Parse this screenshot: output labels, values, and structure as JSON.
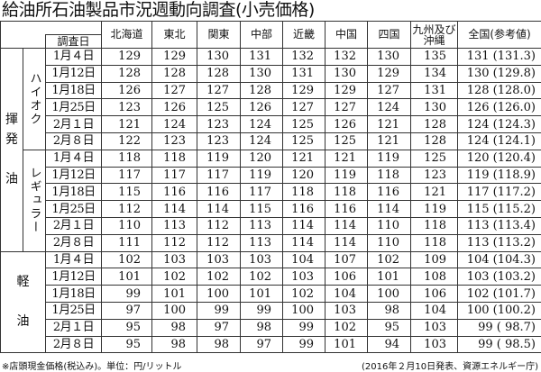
{
  "title": "給油所石油製品市況週動向調査(小売価格)",
  "header": {
    "date_label": "調査日",
    "regions": [
      "北海道",
      "東北",
      "関東",
      "中部",
      "近畿",
      "中国",
      "四国",
      "九州及び沖縄",
      "全国(参考値)"
    ]
  },
  "groups": [
    {
      "label": "揮\n発\n\n油",
      "subgroups": [
        {
          "label": "ハイオク",
          "rows": [
            {
              "date": "1月４日",
              "values": [
                "129",
                "129",
                "130",
                "131",
                "132",
                "132",
                "130",
                "135",
                "131 (131.3)"
              ]
            },
            {
              "date": "1月12日",
              "values": [
                "128",
                "128",
                "128",
                "130",
                "131",
                "130",
                "129",
                "134",
                "130 (129.8)"
              ]
            },
            {
              "date": "1月18日",
              "values": [
                "126",
                "127",
                "127",
                "128",
                "129",
                "129",
                "127",
                "131",
                "128 (128.0)"
              ]
            },
            {
              "date": "1月25日",
              "values": [
                "123",
                "126",
                "125",
                "126",
                "127",
                "127",
                "124",
                "130",
                "126 (126.0)"
              ]
            },
            {
              "date": "2月１日",
              "values": [
                "121",
                "124",
                "123",
                "124",
                "125",
                "126",
                "121",
                "128",
                "124 (124.3)"
              ]
            },
            {
              "date": "2月８日",
              "values": [
                "122",
                "123",
                "123",
                "124",
                "125",
                "125",
                "121",
                "128",
                "124 (124.1)"
              ]
            }
          ]
        },
        {
          "label": "レギュラー",
          "rows": [
            {
              "date": "1月４日",
              "values": [
                "118",
                "118",
                "119",
                "120",
                "121",
                "121",
                "119",
                "125",
                "120 (120.4)"
              ]
            },
            {
              "date": "1月12日",
              "values": [
                "117",
                "117",
                "117",
                "119",
                "120",
                "119",
                "118",
                "123",
                "119 (118.9)"
              ]
            },
            {
              "date": "1月18日",
              "values": [
                "115",
                "116",
                "116",
                "117",
                "118",
                "118",
                "116",
                "121",
                "117 (117.2)"
              ]
            },
            {
              "date": "1月25日",
              "values": [
                "112",
                "114",
                "114",
                "115",
                "116",
                "116",
                "114",
                "119",
                "115 (115.2)"
              ]
            },
            {
              "date": "2月１日",
              "values": [
                "110",
                "113",
                "112",
                "113",
                "114",
                "114",
                "110",
                "118",
                "113 (113.4)"
              ]
            },
            {
              "date": "2月８日",
              "values": [
                "111",
                "112",
                "112",
                "113",
                "114",
                "114",
                "110",
                "118",
                "113 (113.2)"
              ]
            }
          ]
        }
      ]
    },
    {
      "label": "軽\n\n油",
      "rows": [
        {
          "date": "1月４日",
          "values": [
            "102",
            "103",
            "103",
            "103",
            "104",
            "107",
            "102",
            "109",
            "104 (104.3)"
          ]
        },
        {
          "date": "1月12日",
          "values": [
            "101",
            "102",
            "102",
            "102",
            "103",
            "106",
            "101",
            "108",
            "103 (103.2)"
          ]
        },
        {
          "date": "1月18日",
          "values": [
            "99",
            "101",
            "100",
            "101",
            "102",
            "104",
            "100",
            "106",
            "102 (101.7)"
          ]
        },
        {
          "date": "1月25日",
          "values": [
            "97",
            "100",
            "99",
            "99",
            "100",
            "103",
            "98",
            "104",
            "100 (100.2)"
          ]
        },
        {
          "date": "2月１日",
          "values": [
            "95",
            "98",
            "97",
            "98",
            "99",
            "102",
            "95",
            "103",
            "99 ( 98.7)"
          ]
        },
        {
          "date": "2月８日",
          "values": [
            "95",
            "98",
            "98",
            "97",
            "99",
            "101",
            "94",
            "103",
            "99 ( 98.5)"
          ]
        }
      ]
    }
  ],
  "footer": {
    "note": "※店頭現金価格(税込み)。単位：円/リットル",
    "source": "(2016年２月10日発表、資源エネルギー庁)"
  }
}
